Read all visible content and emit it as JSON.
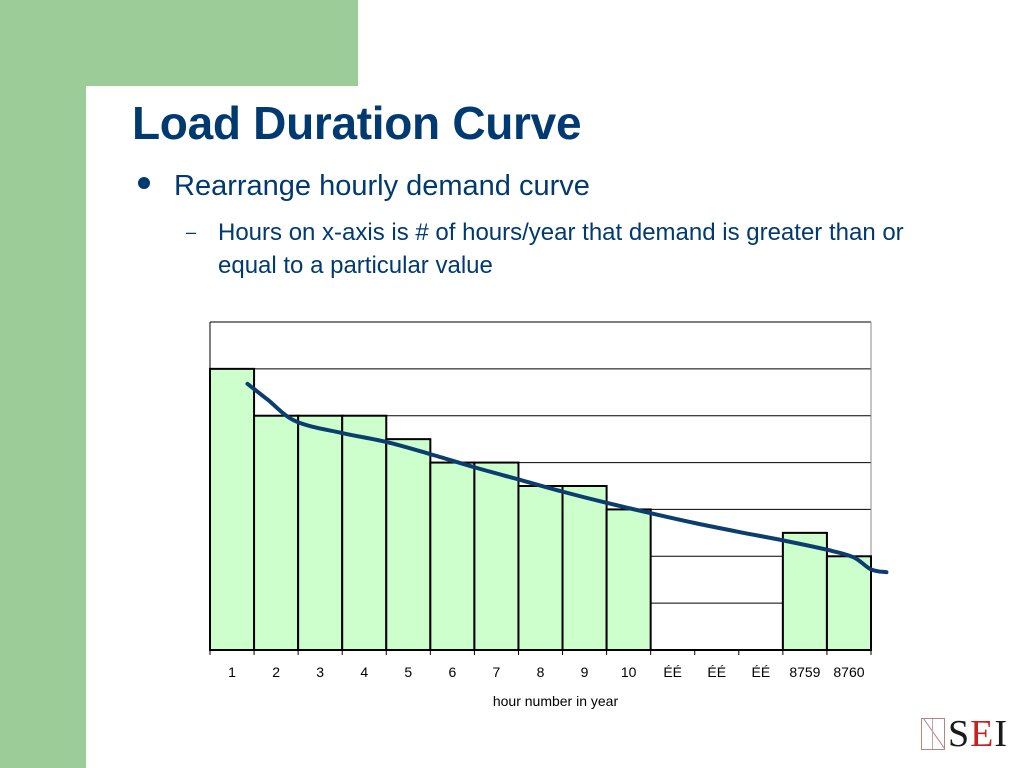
{
  "slide": {
    "title": "Load Duration Curve",
    "bullet": "Rearrange hourly demand curve",
    "sub_bullet": "Hours on x-axis is # of hours/year that demand is greater than or equal to a particular value",
    "sub_bullet_marker": "–"
  },
  "colors": {
    "accent": "#9ccc98",
    "title": "#003a70",
    "text": "#003a70",
    "bar_fill": "#ccffcc",
    "curve": "#0b3e6e"
  },
  "logo": {
    "s": "S",
    "e": "E",
    "i": "I"
  },
  "chart_data": {
    "type": "bar",
    "title": "",
    "xlabel": "hour number in year",
    "ylabel": "",
    "categories": [
      "1",
      "2",
      "3",
      "4",
      "5",
      "6",
      "7",
      "8",
      "9",
      "10",
      "ÉÉ",
      "ÉÉ",
      "ÉÉ",
      "8759",
      "8760"
    ],
    "values": [
      6,
      5,
      5,
      5,
      4.5,
      4,
      4,
      3.5,
      3.5,
      3,
      null,
      null,
      null,
      2.5,
      2
    ],
    "ylim": [
      0,
      7
    ],
    "y_gridlines": [
      1,
      2,
      3,
      4,
      5,
      6,
      7
    ],
    "y_tick_labels": "none",
    "grid": true,
    "legend": "none",
    "overlay_curve": {
      "type": "line",
      "smooth": true,
      "points": [
        [
          0.85,
          5.68
        ],
        [
          1.3,
          5.35
        ],
        [
          1.95,
          4.88
        ],
        [
          3.0,
          4.63
        ],
        [
          4.0,
          4.44
        ],
        [
          5.0,
          4.18
        ],
        [
          6.0,
          3.9
        ],
        [
          7.0,
          3.64
        ],
        [
          8.0,
          3.38
        ],
        [
          9.0,
          3.14
        ],
        [
          10.0,
          2.92
        ],
        [
          11.0,
          2.71
        ],
        [
          12.0,
          2.52
        ],
        [
          13.0,
          2.34
        ],
        [
          14.0,
          2.14
        ],
        [
          14.6,
          1.98
        ],
        [
          15.0,
          1.72
        ],
        [
          15.35,
          1.66
        ]
      ]
    }
  }
}
